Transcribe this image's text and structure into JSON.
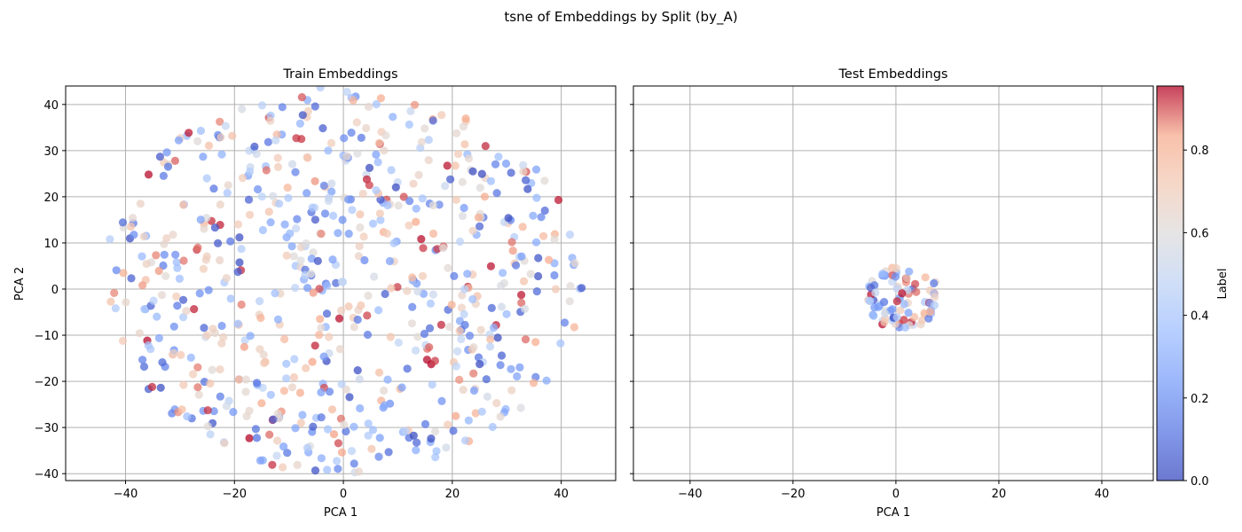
{
  "figure": {
    "suptitle": "tsne of Embeddings by Split (by_A)"
  },
  "chart_data": [
    {
      "type": "scatter",
      "title": "Train Embeddings",
      "xlabel": "PCA 1",
      "ylabel": "PCA 2",
      "xlim": [
        -51,
        50
      ],
      "ylim": [
        -41.5,
        44
      ],
      "xticks": [
        -40,
        -20,
        0,
        20,
        40
      ],
      "yticks": [
        -40,
        -30,
        -20,
        -10,
        0,
        10,
        20,
        30,
        40
      ],
      "grid": true,
      "colormap": "coolwarm",
      "point_count_approx": 700,
      "points_note": "dense cloud of ~700 points, roughly uniform disc centered near (0,2), radius ~42, labels spread over full 0-1 range",
      "cloud": {
        "center": [
          0,
          2
        ],
        "radius": 42,
        "n": 700
      }
    },
    {
      "type": "scatter",
      "title": "Test Embeddings",
      "xlabel": "PCA 1",
      "ylabel": "",
      "xlim": [
        -51,
        50
      ],
      "ylim": [
        -41.5,
        44
      ],
      "xticks": [
        -40,
        -20,
        0,
        20,
        40
      ],
      "yticks": [
        -40,
        -30,
        -20,
        -10,
        0,
        10,
        20,
        30,
        40
      ],
      "grid": true,
      "colormap": "coolwarm",
      "points_note": "tight cluster of ~90 points centered near (1.5,-2), radius ~7",
      "cloud": {
        "center": [
          1.5,
          -2
        ],
        "radius": 7,
        "n": 90
      }
    }
  ],
  "colorbar": {
    "label": "Label",
    "ticks": [
      0.0,
      0.2,
      0.4,
      0.6,
      0.8
    ],
    "tick_labels": [
      "0.0",
      "0.2",
      "0.4",
      "0.6",
      "0.8"
    ],
    "range": [
      0.0,
      0.955
    ]
  },
  "colors": {
    "coolwarm_low": "#3b4cc0",
    "coolwarm_mid": "#dddddd",
    "coolwarm_high": "#b40426",
    "grid": "#b0b0b0"
  }
}
